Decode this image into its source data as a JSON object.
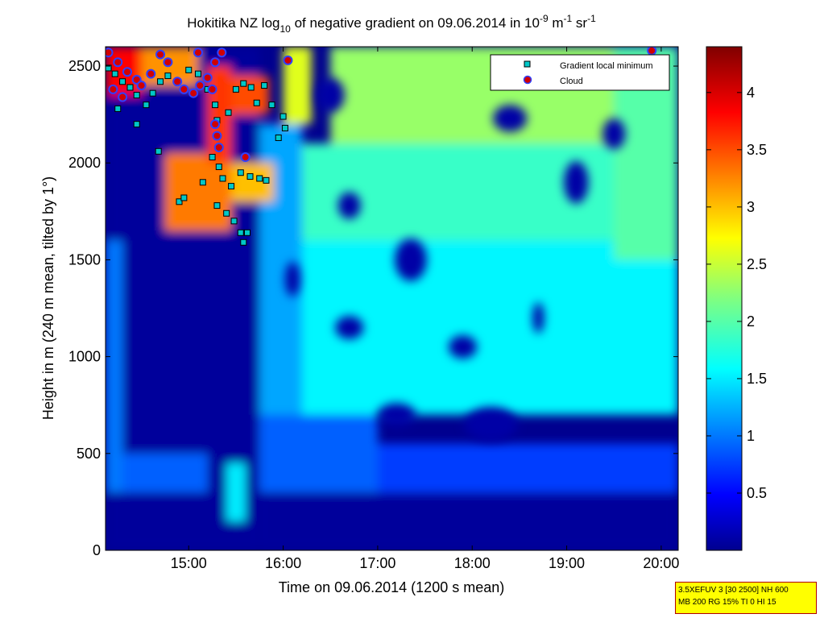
{
  "chart_data": {
    "type": "heatmap",
    "title": {
      "prefix": "Hokitika NZ log",
      "base": "10",
      "mid": " of negative gradient on 09.06.2014 in 10",
      "exp1": "-9",
      "unit1": " m",
      "exp2": "-1",
      "unit2": " sr",
      "exp3": "-1"
    },
    "xlabel": "Time on 09.06.2014 (1200 s mean)",
    "ylabel": "Height in m (240 m mean, tilted by 1°)",
    "x_ticks": [
      "15:00",
      "16:00",
      "17:00",
      "18:00",
      "19:00",
      "20:00"
    ],
    "x_tick_hours": [
      15,
      16,
      17,
      18,
      19,
      20
    ],
    "xlim_hours": [
      14.12,
      20.18
    ],
    "y_ticks": [
      0,
      500,
      1000,
      1500,
      2000,
      2500
    ],
    "ylim": [
      0,
      2600
    ],
    "colorbar": {
      "ticks": [
        "0.5",
        "1",
        "1.5",
        "2",
        "2.5",
        "3",
        "3.5",
        "4"
      ],
      "tick_values": [
        0.5,
        1,
        1.5,
        2,
        2.5,
        3,
        3.5,
        4
      ],
      "range": [
        0,
        4.4
      ]
    },
    "legend": {
      "placement": "top-right",
      "entries": [
        {
          "label": "Gradient local minimum",
          "marker": "square",
          "face": "#00c8c8",
          "edge": "#000000"
        },
        {
          "label": "Cloud",
          "marker": "circle",
          "face": "#d00000",
          "edge": "#3040ff"
        }
      ]
    },
    "colors": {
      "low": "#00008f",
      "high": "#800000"
    },
    "field": {
      "description_levels": "log10 values",
      "regions": [
        {
          "t": [
            14.12,
            15.75
          ],
          "h": [
            0,
            2600
          ],
          "v": 0.05
        },
        {
          "t": [
            15.75,
            20.18
          ],
          "h": [
            0,
            300
          ],
          "v": 0.05
        },
        {
          "t": [
            14.12,
            14.3
          ],
          "h": [
            300,
            1600
          ],
          "v": 1.0
        },
        {
          "t": [
            14.3,
            15.2
          ],
          "h": [
            300,
            500
          ],
          "v": 0.9
        },
        {
          "t": [
            15.4,
            15.6
          ],
          "h": [
            150,
            450
          ],
          "v": 1.5
        },
        {
          "t": [
            15.75,
            17.0
          ],
          "h": [
            300,
            700
          ],
          "v": 0.9
        },
        {
          "t": [
            17.0,
            20.18
          ],
          "h": [
            300,
            550
          ],
          "v": 0.75
        },
        {
          "t": [
            15.75,
            16.2
          ],
          "h": [
            700,
            2200
          ],
          "v": 1.2
        },
        {
          "t": [
            16.2,
            20.18
          ],
          "h": [
            700,
            1600
          ],
          "v": 1.55
        },
        {
          "t": [
            16.2,
            20.18
          ],
          "h": [
            1600,
            2100
          ],
          "v": 1.85
        },
        {
          "t": [
            16.5,
            19.5
          ],
          "h": [
            2100,
            2600
          ],
          "v": 2.3
        },
        {
          "t": [
            19.5,
            20.18
          ],
          "h": [
            1500,
            2600
          ],
          "v": 2.0
        },
        {
          "t": [
            16.0,
            16.3
          ],
          "h": [
            2200,
            2600
          ],
          "v": 2.6
        },
        {
          "t": [
            14.12,
            14.5
          ],
          "h": [
            2350,
            2600
          ],
          "v": 3.8
        },
        {
          "t": [
            14.5,
            15.1
          ],
          "h": [
            2400,
            2600
          ],
          "v": 3.2
        },
        {
          "t": [
            14.75,
            15.45
          ],
          "h": [
            1650,
            2050
          ],
          "v": 3.3
        },
        {
          "t": [
            15.45,
            15.9
          ],
          "h": [
            1800,
            2000
          ],
          "v": 3.0
        },
        {
          "t": [
            15.45,
            15.85
          ],
          "h": [
            2250,
            2450
          ],
          "v": 3.5
        },
        {
          "t": [
            15.2,
            15.45
          ],
          "h": [
            2000,
            2500
          ],
          "v": 3.6
        }
      ],
      "holes": [
        {
          "t": 17.35,
          "h": 1500,
          "rt": 0.17,
          "rh": 110
        },
        {
          "t": 16.7,
          "h": 1780,
          "rt": 0.12,
          "rh": 70
        },
        {
          "t": 18.4,
          "h": 2230,
          "rt": 0.18,
          "rh": 70
        },
        {
          "t": 19.1,
          "h": 1900,
          "rt": 0.13,
          "rh": 110
        },
        {
          "t": 19.5,
          "h": 2150,
          "rt": 0.12,
          "rh": 80
        },
        {
          "t": 18.7,
          "h": 1200,
          "rt": 0.06,
          "rh": 80
        },
        {
          "t": 18.2,
          "h": 650,
          "rt": 0.28,
          "rh": 90
        },
        {
          "t": 17.2,
          "h": 700,
          "rt": 0.2,
          "rh": 60
        },
        {
          "t": 16.7,
          "h": 1150,
          "rt": 0.15,
          "rh": 60
        },
        {
          "t": 17.9,
          "h": 1050,
          "rt": 0.15,
          "rh": 60
        },
        {
          "t": 16.1,
          "h": 1400,
          "rt": 0.08,
          "rh": 90
        },
        {
          "t": 16.5,
          "h": 2350,
          "rt": 0.15,
          "rh": 90
        }
      ]
    },
    "gradient_minima": [
      [
        14.15,
        2490
      ],
      [
        14.22,
        2460
      ],
      [
        14.3,
        2420
      ],
      [
        14.38,
        2390
      ],
      [
        14.45,
        2350
      ],
      [
        14.25,
        2280
      ],
      [
        14.55,
        2300
      ],
      [
        14.62,
        2360
      ],
      [
        14.7,
        2420
      ],
      [
        14.78,
        2450
      ],
      [
        14.45,
        2200
      ],
      [
        14.68,
        2060
      ],
      [
        15.0,
        2480
      ],
      [
        15.1,
        2460
      ],
      [
        15.2,
        2380
      ],
      [
        15.28,
        2300
      ],
      [
        15.3,
        2220
      ],
      [
        15.42,
        2260
      ],
      [
        15.5,
        2380
      ],
      [
        15.58,
        2410
      ],
      [
        15.66,
        2390
      ],
      [
        15.72,
        2310
      ],
      [
        15.8,
        2400
      ],
      [
        15.88,
        2300
      ],
      [
        16.0,
        2240
      ],
      [
        16.02,
        2180
      ],
      [
        15.25,
        2030
      ],
      [
        15.32,
        1980
      ],
      [
        15.36,
        1920
      ],
      [
        15.45,
        1880
      ],
      [
        15.55,
        1950
      ],
      [
        15.65,
        1930
      ],
      [
        15.75,
        1920
      ],
      [
        15.82,
        1910
      ],
      [
        14.9,
        1800
      ],
      [
        14.95,
        1820
      ],
      [
        15.15,
        1900
      ],
      [
        15.3,
        1780
      ],
      [
        15.4,
        1740
      ],
      [
        15.48,
        1700
      ],
      [
        15.55,
        1640
      ],
      [
        15.58,
        1590
      ],
      [
        15.62,
        1640
      ],
      [
        15.95,
        2130
      ]
    ],
    "clouds": [
      [
        14.15,
        2570
      ],
      [
        14.25,
        2520
      ],
      [
        14.35,
        2470
      ],
      [
        14.45,
        2430
      ],
      [
        14.2,
        2380
      ],
      [
        14.3,
        2340
      ],
      [
        14.5,
        2400
      ],
      [
        14.6,
        2460
      ],
      [
        14.7,
        2560
      ],
      [
        14.78,
        2520
      ],
      [
        14.88,
        2420
      ],
      [
        14.95,
        2380
      ],
      [
        15.05,
        2360
      ],
      [
        15.12,
        2400
      ],
      [
        15.2,
        2440
      ],
      [
        15.28,
        2520
      ],
      [
        15.35,
        2570
      ],
      [
        15.3,
        2140
      ],
      [
        15.28,
        2200
      ],
      [
        15.32,
        2080
      ],
      [
        15.6,
        2030
      ],
      [
        15.25,
        2380
      ],
      [
        15.1,
        2570
      ],
      [
        19.9,
        2580
      ],
      [
        16.05,
        2530
      ]
    ]
  },
  "info_box": {
    "line1": "3.5XEFUV 3 [30 2500] NH 600",
    "line2": "MB 200 RG 15% TI 0 HI 15"
  }
}
